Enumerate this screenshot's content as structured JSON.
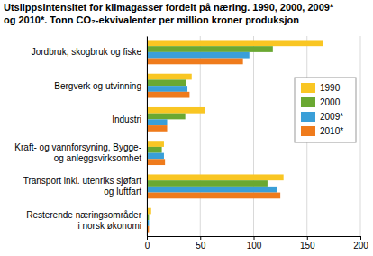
{
  "chart_data": {
    "type": "bar",
    "orientation": "horizontal",
    "title": [
      "Utslippsintensitet for klimagasser fordelt på næring. 1990, 2000, 2009*",
      "og 2010*. Tonn CO₂-ekvivalenter per million kroner produksjon"
    ],
    "categories": [
      "Jordbruk, skogbruk og fiske",
      "Bergverk og utvinning",
      "Industri",
      "Kraft- og vannforsyning, Bygge-\nog anleggsvirksomhet",
      "Transport inkl. utenriks sjøfart\nog luftfart",
      "Resterende næringsområder\ni norsk økonomi"
    ],
    "series": [
      {
        "name": "1990",
        "color": "#f9c623",
        "values": [
          165,
          42,
          54,
          16,
          128,
          4
        ]
      },
      {
        "name": "2000",
        "color": "#6aa832",
        "values": [
          118,
          37,
          36,
          14,
          113,
          2
        ]
      },
      {
        "name": "2009*",
        "color": "#3a9fd8",
        "values": [
          96,
          38,
          19,
          16,
          122,
          2
        ]
      },
      {
        "name": "2010*",
        "color": "#ef7b1c",
        "values": [
          90,
          40,
          19,
          17,
          125,
          2
        ]
      }
    ],
    "xlim": [
      0,
      200
    ],
    "xticks": [
      0,
      50,
      100,
      150,
      200
    ],
    "grid": true,
    "legend": "right"
  }
}
